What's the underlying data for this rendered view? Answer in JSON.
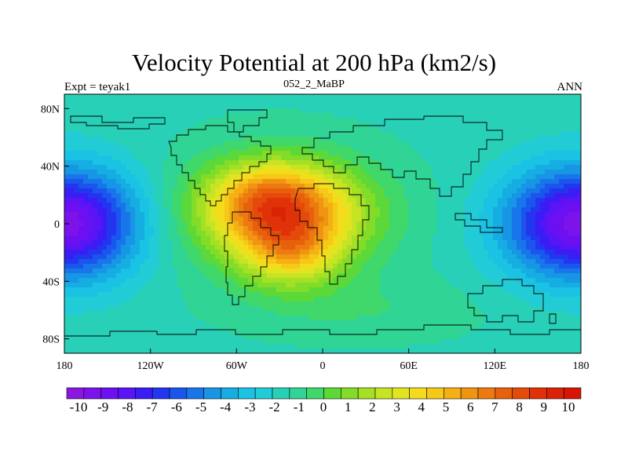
{
  "chart_data": {
    "type": "heatmap",
    "title": "Velocity Potential at 200 hPa (km2/s)",
    "left_label": "Expt = teyak1",
    "center_label": "052_2_MaBP",
    "right_label": "ANN",
    "x_ticks": [
      "180",
      "120W",
      "60W",
      "0",
      "60E",
      "120E",
      "180"
    ],
    "x_tick_values": [
      -180,
      -120,
      -60,
      0,
      60,
      120,
      180
    ],
    "y_ticks": [
      "80N",
      "40N",
      "0",
      "40S",
      "80S"
    ],
    "y_tick_values": [
      80,
      40,
      0,
      -40,
      -80
    ],
    "xlim": [
      -180,
      180
    ],
    "ylim": [
      -90,
      90
    ],
    "colorbar_labels": [
      "-10",
      "-9",
      "-8",
      "-7",
      "-6",
      "-5",
      "-4",
      "-3",
      "-2",
      "-1",
      "0",
      "1",
      "2",
      "3",
      "4",
      "5",
      "6",
      "7",
      "8",
      "9",
      "10"
    ],
    "colorbar_range": [
      -10.5,
      10.5
    ],
    "colorbar_colors": [
      "#8a16e0",
      "#7c13ea",
      "#6c10f2",
      "#5a14f6",
      "#3c1cf4",
      "#2236f0",
      "#1a56ee",
      "#1876ea",
      "#1696e4",
      "#16aee2",
      "#1ac2e4",
      "#22ccd6",
      "#28d0b8",
      "#30d494",
      "#40d86a",
      "#5cd838",
      "#82dc28",
      "#a6e024",
      "#c6e424",
      "#e2e420",
      "#f4dc1c",
      "#f6c818",
      "#f4b014",
      "#f09412",
      "#ec7a10",
      "#e8600c",
      "#e44a0a",
      "#e03208",
      "#dc2206",
      "#d81404"
    ],
    "field_centers": [
      {
        "lon": -28,
        "lat": 10,
        "value": 6,
        "spread": [
          52,
          30
        ]
      },
      {
        "lon": -22,
        "lat": -20,
        "value": 4,
        "spread": [
          34,
          24
        ]
      },
      {
        "lon": -40,
        "lat": 20,
        "value": 2,
        "spread": [
          35,
          22
        ]
      },
      {
        "lon": -30,
        "lat": 5,
        "value": 2.5,
        "spread": [
          75,
          45
        ]
      },
      {
        "lon": 180,
        "lat": 0,
        "value": -8,
        "spread": [
          52,
          38
        ]
      },
      {
        "lon": -180,
        "lat": 0,
        "value": -8,
        "spread": [
          52,
          38
        ]
      },
      {
        "lon": 30,
        "lat": -60,
        "value": 0.8,
        "spread": [
          80,
          22
        ]
      }
    ],
    "field_background": -1.6
  }
}
